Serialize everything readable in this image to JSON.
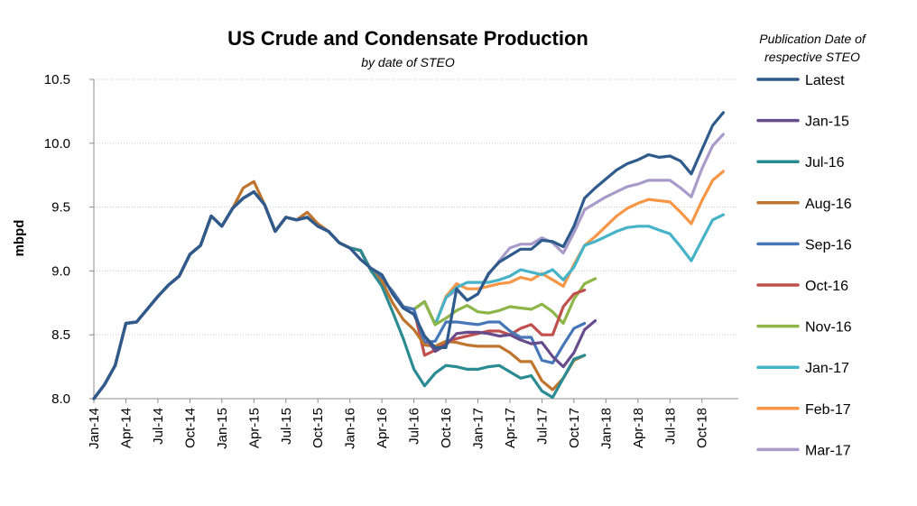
{
  "chart_data": {
    "type": "line",
    "title": "US Crude and Condensate Production",
    "subtitle": "by date of STEO",
    "xlabel": "",
    "ylabel": "mbpd",
    "ylim": [
      8.0,
      10.5
    ],
    "yticks": [
      "8.0",
      "8.5",
      "9.0",
      "9.5",
      "10.0",
      "10.5"
    ],
    "grid": "horizontal",
    "legend_title": "Publication Date of respective STEO",
    "legend_position": "right",
    "x_start": "Jan-14",
    "x_tick_labels": [
      "Jan-14",
      "Apr-14",
      "Jul-14",
      "Oct-14",
      "Jan-15",
      "Apr-15",
      "Jul-15",
      "Oct-15",
      "Jan-16",
      "Apr-16",
      "Jul-16",
      "Oct-16",
      "Jan-17",
      "Apr-17",
      "Jul-17",
      "Oct-17",
      "Jan-18",
      "Apr-18",
      "Jul-18",
      "Oct-18"
    ],
    "series": [
      {
        "name": "Latest",
        "color": "#2E5B8C",
        "values": [
          8.0,
          8.11,
          8.26,
          8.59,
          8.6,
          8.7,
          8.8,
          8.89,
          8.96,
          9.13,
          9.2,
          9.43,
          9.35,
          9.49,
          9.57,
          9.62,
          9.52,
          9.31,
          9.42,
          9.4,
          9.42,
          9.35,
          9.31,
          9.22,
          9.18,
          9.09,
          9.02,
          8.97,
          8.82,
          8.71,
          8.66,
          8.49,
          8.4,
          8.4,
          8.86,
          8.77,
          8.82,
          8.98,
          9.07,
          9.12,
          9.17,
          9.17,
          9.24,
          9.23,
          9.19,
          9.35,
          9.57,
          9.65,
          9.72,
          9.79,
          9.84,
          9.87,
          9.91,
          9.89,
          9.9,
          9.86,
          9.76,
          9.95,
          10.14,
          10.24
        ]
      },
      {
        "name": "Jan-15",
        "color": "#674C8C",
        "values": [
          8.0,
          8.11,
          8.26,
          8.59,
          8.6,
          8.7,
          8.8,
          8.89,
          8.96,
          9.13,
          9.2,
          9.43,
          9.35,
          9.49,
          9.57,
          9.62,
          9.52,
          9.31,
          9.42,
          9.4,
          9.42,
          9.35,
          9.31,
          9.22,
          9.18,
          9.09,
          9.02,
          8.97,
          8.82,
          8.71,
          8.66,
          8.49,
          8.37,
          8.42,
          8.51,
          8.52,
          8.52,
          8.51,
          8.49,
          8.5,
          8.46,
          8.43,
          8.44,
          8.33,
          8.25,
          8.36,
          8.54,
          8.61
        ]
      },
      {
        "name": "Jul-16",
        "color": "#2A8C92",
        "values": [
          8.0,
          8.11,
          8.26,
          8.59,
          8.6,
          8.7,
          8.8,
          8.89,
          8.96,
          9.13,
          9.2,
          9.43,
          9.35,
          9.49,
          9.57,
          9.62,
          9.52,
          9.31,
          9.42,
          9.4,
          9.42,
          9.35,
          9.31,
          9.22,
          9.18,
          9.16,
          9.0,
          8.88,
          8.68,
          8.47,
          8.23,
          8.1,
          8.2,
          8.26,
          8.25,
          8.23,
          8.23,
          8.25,
          8.26,
          8.21,
          8.16,
          8.18,
          8.06,
          8.01,
          8.16,
          8.31,
          8.34
        ]
      },
      {
        "name": "Aug-16",
        "color": "#C0752E",
        "values": [
          8.0,
          8.11,
          8.26,
          8.59,
          8.6,
          8.7,
          8.8,
          8.89,
          8.96,
          9.13,
          9.2,
          9.43,
          9.35,
          9.49,
          9.65,
          9.7,
          9.52,
          9.31,
          9.42,
          9.4,
          9.46,
          9.37,
          9.31,
          9.22,
          9.18,
          9.16,
          9.0,
          8.92,
          8.75,
          8.62,
          8.54,
          8.42,
          8.41,
          8.45,
          8.44,
          8.42,
          8.41,
          8.41,
          8.41,
          8.36,
          8.29,
          8.29,
          8.14,
          8.07,
          8.16,
          8.3,
          8.34
        ]
      },
      {
        "name": "Sep-16",
        "color": "#4677B8",
        "values": [
          8.0,
          8.11,
          8.26,
          8.59,
          8.6,
          8.7,
          8.8,
          8.89,
          8.96,
          9.13,
          9.2,
          9.43,
          9.35,
          9.49,
          9.57,
          9.62,
          9.52,
          9.31,
          9.42,
          9.4,
          9.42,
          9.35,
          9.31,
          9.22,
          9.18,
          9.16,
          9.0,
          8.94,
          8.84,
          8.72,
          8.7,
          8.44,
          8.45,
          8.6,
          8.6,
          8.59,
          8.58,
          8.6,
          8.6,
          8.53,
          8.48,
          8.48,
          8.3,
          8.28,
          8.42,
          8.55,
          8.59
        ]
      },
      {
        "name": "Oct-16",
        "color": "#C0504D",
        "values": [
          8.0,
          8.11,
          8.26,
          8.59,
          8.6,
          8.7,
          8.8,
          8.89,
          8.96,
          9.13,
          9.2,
          9.43,
          9.35,
          9.49,
          9.57,
          9.62,
          9.52,
          9.31,
          9.42,
          9.4,
          9.42,
          9.35,
          9.31,
          9.22,
          9.18,
          9.16,
          9.0,
          8.94,
          8.84,
          8.72,
          8.7,
          8.34,
          8.38,
          8.44,
          8.47,
          8.49,
          8.51,
          8.53,
          8.53,
          8.5,
          8.55,
          8.58,
          8.5,
          8.5,
          8.72,
          8.82,
          8.85
        ]
      },
      {
        "name": "Nov-16",
        "color": "#8DB547",
        "values": [
          8.0,
          8.11,
          8.26,
          8.59,
          8.6,
          8.7,
          8.8,
          8.89,
          8.96,
          9.13,
          9.2,
          9.43,
          9.35,
          9.49,
          9.57,
          9.62,
          9.52,
          9.31,
          9.42,
          9.4,
          9.42,
          9.35,
          9.31,
          9.22,
          9.18,
          9.16,
          9.0,
          8.94,
          8.84,
          8.72,
          8.7,
          8.76,
          8.58,
          8.63,
          8.69,
          8.73,
          8.68,
          8.67,
          8.69,
          8.72,
          8.71,
          8.7,
          8.74,
          8.68,
          8.59,
          8.78,
          8.9,
          8.94
        ]
      },
      {
        "name": "Jan-17",
        "color": "#46B3C9",
        "values": [
          8.0,
          8.11,
          8.26,
          8.59,
          8.6,
          8.7,
          8.8,
          8.89,
          8.96,
          9.13,
          9.2,
          9.43,
          9.35,
          9.49,
          9.57,
          9.62,
          9.52,
          9.31,
          9.42,
          9.4,
          9.42,
          9.35,
          9.31,
          9.22,
          9.18,
          9.16,
          9.0,
          8.94,
          8.84,
          8.72,
          8.7,
          8.76,
          8.58,
          8.79,
          8.87,
          8.91,
          8.91,
          8.91,
          8.93,
          8.96,
          9.01,
          8.99,
          8.97,
          9.01,
          8.93,
          9.03,
          9.2,
          9.23,
          9.27,
          9.31,
          9.34,
          9.35,
          9.35,
          9.32,
          9.29,
          9.19,
          9.08,
          9.24,
          9.4,
          9.44
        ]
      },
      {
        "name": "Feb-17",
        "color": "#F79646",
        "values": [
          8.0,
          8.11,
          8.26,
          8.59,
          8.6,
          8.7,
          8.8,
          8.89,
          8.96,
          9.13,
          9.2,
          9.43,
          9.35,
          9.49,
          9.57,
          9.62,
          9.52,
          9.31,
          9.42,
          9.4,
          9.42,
          9.35,
          9.31,
          9.22,
          9.18,
          9.16,
          9.0,
          8.94,
          8.84,
          8.72,
          8.7,
          8.76,
          8.58,
          8.8,
          8.9,
          8.86,
          8.86,
          8.88,
          8.9,
          8.91,
          8.95,
          8.93,
          8.98,
          8.93,
          8.88,
          9.05,
          9.2,
          9.27,
          9.35,
          9.43,
          9.49,
          9.53,
          9.56,
          9.55,
          9.54,
          9.46,
          9.37,
          9.55,
          9.71,
          9.78
        ]
      },
      {
        "name": "Mar-17",
        "color": "#A99BC9",
        "values": [
          8.0,
          8.11,
          8.26,
          8.59,
          8.6,
          8.7,
          8.8,
          8.89,
          8.96,
          9.13,
          9.2,
          9.43,
          9.35,
          9.49,
          9.57,
          9.62,
          9.52,
          9.31,
          9.42,
          9.4,
          9.42,
          9.35,
          9.31,
          9.22,
          9.18,
          9.16,
          9.0,
          8.94,
          8.84,
          8.72,
          8.7,
          8.76,
          8.58,
          8.79,
          8.85,
          8.77,
          8.82,
          8.97,
          9.08,
          9.18,
          9.21,
          9.21,
          9.26,
          9.22,
          9.14,
          9.3,
          9.48,
          9.53,
          9.58,
          9.62,
          9.66,
          9.68,
          9.71,
          9.71,
          9.71,
          9.65,
          9.58,
          9.8,
          9.98,
          10.07
        ]
      }
    ]
  }
}
